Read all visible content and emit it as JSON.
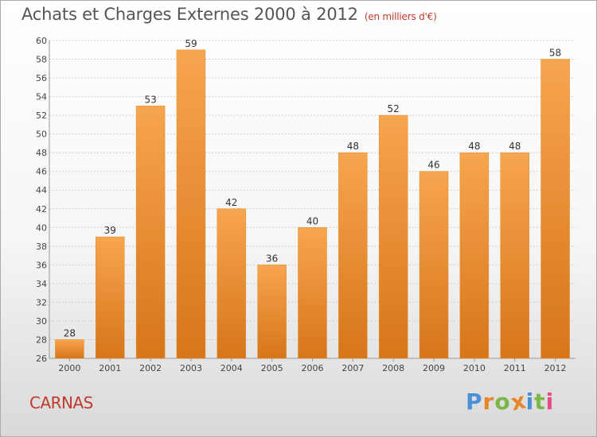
{
  "header": {
    "title": "Achats et Charges Externes 2000 à 2012",
    "subtitle": "(en milliers d'€)"
  },
  "footer": {
    "town": "CARNAS",
    "logo_text": "Proxiti"
  },
  "colors": {
    "bar_light": "#f7a54f",
    "bar_dark": "#d7751a",
    "title": "#555555",
    "subtitle": "#c0392b",
    "town": "#c0392b",
    "logo_letters": [
      "#4a90d9",
      "#e8862b",
      "#7ab648",
      "#e8862b",
      "#4a90d9",
      "#7ab648",
      "#e84a8a"
    ]
  },
  "chart_data": {
    "type": "bar",
    "title": "Achats et Charges Externes 2000 à 2012",
    "subtitle": "(en milliers d'€)",
    "xlabel": "",
    "ylabel": "",
    "categories": [
      "2000",
      "2001",
      "2002",
      "2003",
      "2004",
      "2005",
      "2006",
      "2007",
      "2008",
      "2009",
      "2010",
      "2011",
      "2012"
    ],
    "values": [
      28,
      39,
      53,
      59,
      42,
      36,
      40,
      48,
      52,
      46,
      48,
      48,
      58
    ],
    "ylim": [
      26,
      60
    ],
    "yticks": [
      26,
      28,
      30,
      32,
      34,
      36,
      38,
      40,
      42,
      44,
      46,
      48,
      50,
      52,
      54,
      56,
      58,
      60
    ],
    "grid": true,
    "legend": "none"
  }
}
